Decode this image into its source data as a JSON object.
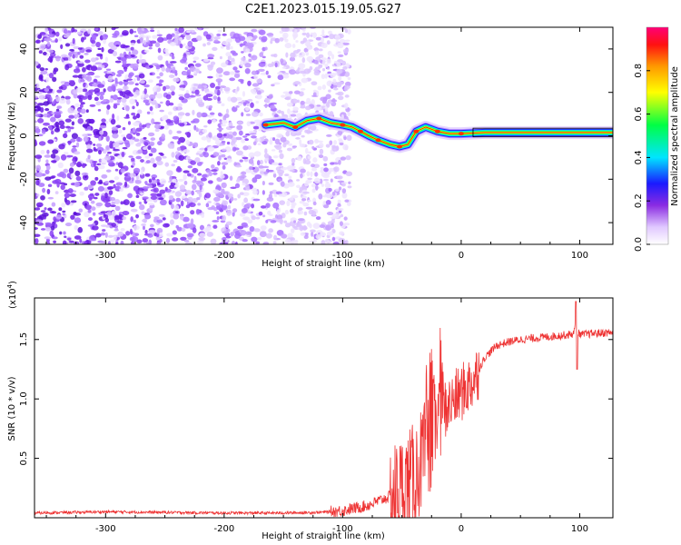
{
  "title": "C2E1.2023.015.19.05.G27",
  "chart_data": [
    {
      "type": "heatmap",
      "xlabel": "Height of straight line (km)",
      "ylabel": "Frequency (Hz)",
      "xlim": [
        -360,
        128
      ],
      "ylim": [
        -50,
        50
      ],
      "xticks": [
        -300,
        -200,
        -100,
        0,
        100
      ],
      "yticks": [
        -40,
        -20,
        0,
        20,
        40
      ],
      "noise_region_x": [
        -360,
        -100
      ],
      "signal_track": [
        {
          "x": -165,
          "y": 5
        },
        {
          "x": -150,
          "y": 6
        },
        {
          "x": -140,
          "y": 4
        },
        {
          "x": -130,
          "y": 7
        },
        {
          "x": -120,
          "y": 8
        },
        {
          "x": -110,
          "y": 6
        },
        {
          "x": -100,
          "y": 5
        },
        {
          "x": -92,
          "y": 4
        },
        {
          "x": -85,
          "y": 2
        },
        {
          "x": -78,
          "y": 0
        },
        {
          "x": -70,
          "y": -2
        },
        {
          "x": -60,
          "y": -4
        },
        {
          "x": -52,
          "y": -5
        },
        {
          "x": -45,
          "y": -4
        },
        {
          "x": -38,
          "y": 2
        },
        {
          "x": -30,
          "y": 4
        },
        {
          "x": -20,
          "y": 2
        },
        {
          "x": -10,
          "y": 1
        },
        {
          "x": 0,
          "y": 1
        },
        {
          "x": 20,
          "y": 1.5
        },
        {
          "x": 60,
          "y": 1.5
        },
        {
          "x": 95,
          "y": 1.5
        },
        {
          "x": 128,
          "y": 1.5
        }
      ],
      "colorbar": {
        "label": "Normalized spectral amplitude",
        "range": [
          0,
          1
        ],
        "ticks": [
          "0.0",
          "0.2",
          "0.4",
          "0.6",
          "0.8"
        ]
      },
      "grid": false
    },
    {
      "type": "line",
      "xlabel": "Height of straight line (km)",
      "ylabel": "SNR (10 * v/v)",
      "exponent_label": "(x10",
      "exponent_power": "4",
      "exponent_close": ")",
      "xlim": [
        -360,
        128
      ],
      "ylim": [
        0,
        18500
      ],
      "xticks": [
        -300,
        -200,
        -100,
        0,
        100
      ],
      "yticks": [
        "0.5",
        "1.0",
        "1.5"
      ],
      "ytick_values": [
        5000,
        10000,
        15000
      ],
      "color": "#ee3333",
      "series": [
        {
          "x": [
            -360,
            -300,
            -250,
            -200,
            -150,
            -120,
            -100,
            -80,
            -60,
            -50,
            -45,
            -40,
            -35,
            -30,
            -25,
            -20,
            -15,
            -10,
            -5,
            0,
            5,
            10,
            15,
            20,
            25,
            30,
            40,
            50,
            60,
            70,
            80,
            90,
            95,
            97,
            99,
            102,
            110,
            128
          ],
          "y": [
            400,
            500,
            450,
            400,
            400,
            450,
            600,
            1000,
            1800,
            2500,
            3000,
            3500,
            4500,
            5500,
            7000,
            8500,
            9000,
            9500,
            10000,
            10500,
            11000,
            11500,
            12500,
            13500,
            14000,
            14500,
            14800,
            15000,
            15100,
            15200,
            15300,
            15400,
            15500,
            16500,
            15500,
            15400,
            15500,
            15600
          ]
        }
      ],
      "grid": false
    }
  ]
}
